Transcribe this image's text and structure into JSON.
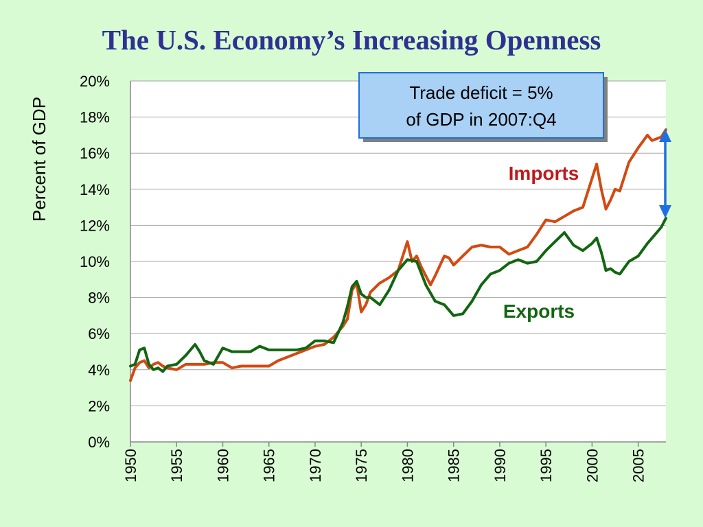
{
  "title": "The U.S. Economy’s Increasing Openness",
  "colors": {
    "background": "#d9fbd4",
    "title": "#2e3192",
    "imports": "#d24a12",
    "exports": "#116611",
    "arrow": "#1e6fe0",
    "callout_fill": "#a9d0f5"
  },
  "chart_data": {
    "type": "line",
    "ylabel": "Percent of GDP",
    "xlabel": "",
    "xlim": [
      1950,
      2008
    ],
    "ylim": [
      0,
      20
    ],
    "yticks": [
      "0%",
      "2%",
      "4%",
      "6%",
      "8%",
      "10%",
      "12%",
      "14%",
      "16%",
      "18%",
      "20%"
    ],
    "xticks": [
      "1950",
      "1955",
      "1960",
      "1965",
      "1970",
      "1975",
      "1980",
      "1985",
      "1990",
      "1995",
      "2000",
      "2005"
    ],
    "grid": "horizontal",
    "annotation": {
      "line1": "Trade deficit = 5%",
      "line2": "of GDP in 2007:Q4"
    },
    "series": [
      {
        "name": "Imports",
        "x": [
          1950,
          1950.5,
          1951,
          1951.5,
          1952,
          1952.5,
          1953,
          1953.5,
          1954,
          1955,
          1956,
          1957,
          1958,
          1959,
          1960,
          1961,
          1962,
          1963,
          1964,
          1965,
          1966,
          1967,
          1968,
          1969,
          1970,
          1971,
          1972,
          1973,
          1973.5,
          1974,
          1974.5,
          1975,
          1975.5,
          1976,
          1977,
          1978,
          1979,
          1979.5,
          1980,
          1980.5,
          1981,
          1981.5,
          1982,
          1982.5,
          1983,
          1984,
          1984.5,
          1985,
          1986,
          1987,
          1988,
          1989,
          1990,
          1991,
          1992,
          1993,
          1994,
          1995,
          1996,
          1997,
          1998,
          1999,
          2000,
          2000.5,
          2001,
          2001.5,
          2002,
          2002.5,
          2003,
          2004,
          2005,
          2006,
          2006.5,
          2007,
          2007.5,
          2008
        ],
        "values": [
          3.4,
          4.1,
          4.4,
          4.5,
          4.1,
          4.3,
          4.4,
          4.2,
          4.1,
          4.0,
          4.3,
          4.3,
          4.3,
          4.4,
          4.4,
          4.1,
          4.2,
          4.2,
          4.2,
          4.2,
          4.5,
          4.7,
          4.9,
          5.1,
          5.3,
          5.4,
          5.8,
          6.4,
          6.8,
          8.4,
          8.8,
          7.2,
          7.6,
          8.3,
          8.8,
          9.1,
          9.5,
          10.3,
          11.1,
          10.0,
          10.3,
          9.7,
          9.2,
          8.7,
          9.2,
          10.3,
          10.2,
          9.8,
          10.3,
          10.8,
          10.9,
          10.8,
          10.8,
          10.4,
          10.6,
          10.8,
          11.5,
          12.3,
          12.2,
          12.5,
          12.8,
          13.0,
          14.6,
          15.4,
          14.0,
          12.9,
          13.4,
          14.0,
          13.9,
          15.5,
          16.3,
          17.0,
          16.7,
          16.8,
          16.9,
          17.3
        ]
      },
      {
        "name": "Exports",
        "x": [
          1950,
          1950.5,
          1951,
          1951.5,
          1952,
          1952.5,
          1953,
          1953.5,
          1954,
          1955,
          1956,
          1956.5,
          1957,
          1957.5,
          1958,
          1959,
          1960,
          1961,
          1962,
          1963,
          1964,
          1965,
          1966,
          1967,
          1968,
          1969,
          1970,
          1971,
          1972,
          1973,
          1973.5,
          1974,
          1974.5,
          1975,
          1975.5,
          1976,
          1977,
          1978,
          1979,
          1980,
          1981,
          1982,
          1983,
          1984,
          1985,
          1986,
          1987,
          1988,
          1989,
          1990,
          1991,
          1992,
          1993,
          1994,
          1995,
          1996,
          1997,
          1998,
          1999,
          2000,
          2000.5,
          2001,
          2001.5,
          2002,
          2002.5,
          2003,
          2004,
          2005,
          2006,
          2007,
          2007.5,
          2008
        ],
        "values": [
          4.2,
          4.3,
          5.1,
          5.2,
          4.3,
          4.0,
          4.1,
          3.9,
          4.2,
          4.3,
          4.8,
          5.1,
          5.4,
          5.0,
          4.5,
          4.3,
          5.2,
          5.0,
          5.0,
          5.0,
          5.3,
          5.1,
          5.1,
          5.1,
          5.1,
          5.2,
          5.6,
          5.6,
          5.5,
          6.6,
          7.5,
          8.6,
          8.9,
          8.2,
          8.0,
          8.0,
          7.6,
          8.4,
          9.5,
          10.1,
          10.0,
          8.7,
          7.8,
          7.6,
          7.0,
          7.1,
          7.8,
          8.7,
          9.3,
          9.5,
          9.9,
          10.1,
          9.9,
          10.0,
          10.6,
          11.1,
          11.6,
          10.9,
          10.6,
          11.0,
          11.3,
          10.5,
          9.5,
          9.6,
          9.4,
          9.3,
          10.0,
          10.3,
          11.0,
          11.6,
          11.9,
          12.4
        ]
      }
    ]
  }
}
